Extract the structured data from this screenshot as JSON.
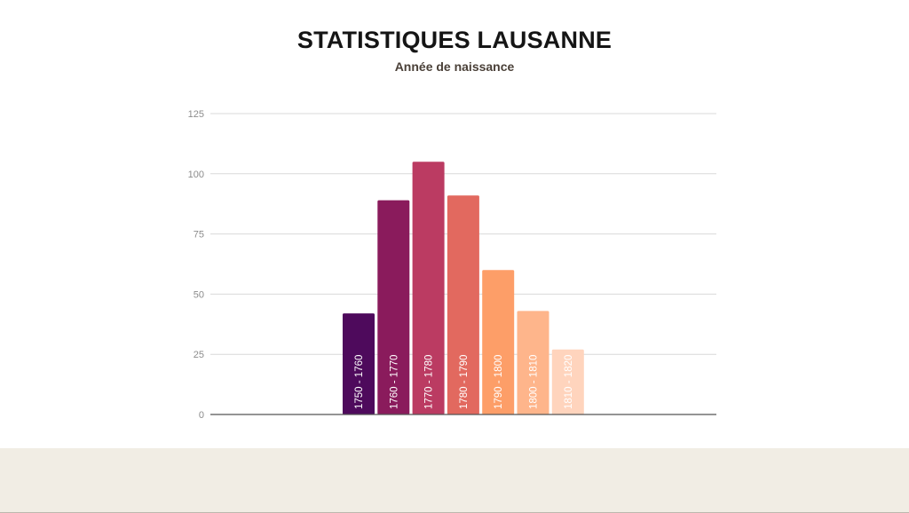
{
  "header": {
    "title": "STATISTIQUES LAUSANNE",
    "subtitle": "Année de naissance"
  },
  "chart_data": {
    "type": "bar",
    "title": "",
    "xlabel": "",
    "ylabel": "",
    "ylim": [
      0,
      125
    ],
    "yticks": [
      0,
      25,
      50,
      75,
      100,
      125
    ],
    "grid": true,
    "legend": "none",
    "categories": [
      "1750 - 1760",
      "1760 - 1770",
      "1770 - 1780",
      "1780 - 1790",
      "1790 - 1800",
      "1800 - 1810",
      "1810 - 1820"
    ],
    "values": [
      42,
      89,
      105,
      91,
      60,
      43,
      27
    ],
    "colors": [
      "#4e0a5c",
      "#8a1b5c",
      "#bb3b62",
      "#e2695f",
      "#fd9e68",
      "#feb58b",
      "#ffd4bd"
    ]
  },
  "colors": {
    "gridline": "#d9d9d9",
    "baseline": "#555555",
    "footer_band": "#f1ede4"
  }
}
